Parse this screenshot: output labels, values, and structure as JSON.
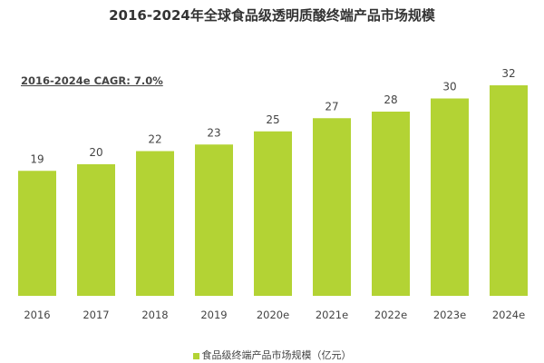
{
  "chart_data": {
    "type": "bar",
    "title": "2016-2024年全球食品级透明质酸终端产品市场规模",
    "annotation": "2016-2024e CAGR: 7.0%",
    "categories": [
      "2016",
      "2017",
      "2018",
      "2019",
      "2020e",
      "2021e",
      "2022e",
      "2023e",
      "2024e"
    ],
    "series": [
      {
        "name": "食品级终端产品市场规模（亿元）",
        "values": [
          19,
          20,
          22,
          23,
          25,
          27,
          28,
          30,
          32
        ],
        "color": "#b3d334"
      }
    ],
    "ylim": [
      0,
      32
    ],
    "grid": false,
    "legend": "bottom"
  }
}
